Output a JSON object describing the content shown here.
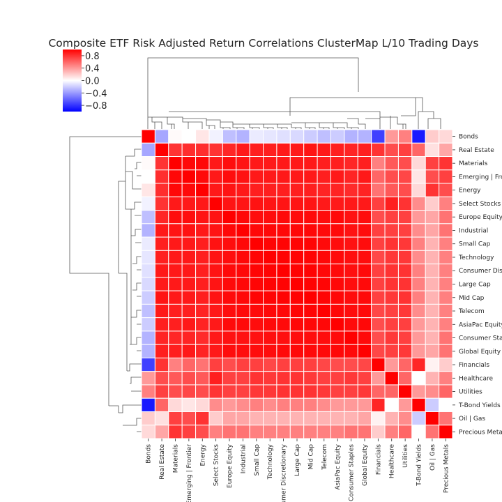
{
  "chart_data": {
    "type": "heatmap",
    "title": "Composite ETF Risk Adjusted Return Correlations ClusterMap L/10 Trading Days",
    "labels": [
      "Bonds",
      "Real Estate",
      "Materials",
      "Emerging | Frontier",
      "Energy",
      "Select Stocks",
      "Europe Equity",
      "Industrial",
      "Small Cap",
      "Technology",
      "Consumer Discretionary",
      "Large Cap",
      "Mid Cap",
      "Telecom",
      "AsiaPac Equity",
      "Consumer Staples",
      "Global Equity",
      "Financials",
      "Healthcare",
      "Utilities",
      "T-Bond Yields",
      "Oil | Gas",
      "Precious Metals"
    ],
    "colorbar": {
      "min": -1.0,
      "max": 1.0,
      "ticks": [
        0.8,
        0.4,
        0.0,
        -0.4,
        -0.8
      ],
      "tick_labels": [
        "0.8",
        "0.4",
        "0.0",
        "−0.4",
        "−0.8"
      ],
      "colormap": "bwr",
      "colors": {
        "negative": "#0000ff",
        "zero": "#ffffff",
        "positive": "#ff0000"
      }
    },
    "values": [
      [
        1.0,
        -0.35,
        0.02,
        0.0,
        0.1,
        -0.05,
        -0.25,
        -0.3,
        -0.08,
        -0.1,
        -0.12,
        -0.15,
        -0.2,
        -0.25,
        -0.2,
        -0.3,
        -0.3,
        -0.75,
        0.4,
        0.5,
        -0.9,
        0.2,
        0.15
      ],
      [
        -0.35,
        1.0,
        0.8,
        0.82,
        0.82,
        0.8,
        0.85,
        0.9,
        0.88,
        0.88,
        0.9,
        0.9,
        0.92,
        0.9,
        0.88,
        0.86,
        0.88,
        0.8,
        0.7,
        0.75,
        0.6,
        0.12,
        0.35
      ],
      [
        0.02,
        0.8,
        1.0,
        0.97,
        0.97,
        0.9,
        0.95,
        0.92,
        0.9,
        0.9,
        0.9,
        0.9,
        0.9,
        0.88,
        0.88,
        0.85,
        0.88,
        0.5,
        0.65,
        0.7,
        0.15,
        0.75,
        0.8
      ],
      [
        0.0,
        0.82,
        0.97,
        1.0,
        0.96,
        0.9,
        0.95,
        0.93,
        0.9,
        0.9,
        0.9,
        0.9,
        0.9,
        0.88,
        0.9,
        0.86,
        0.9,
        0.6,
        0.7,
        0.72,
        0.1,
        0.7,
        0.75
      ],
      [
        0.1,
        0.82,
        0.97,
        0.96,
        1.0,
        0.9,
        0.92,
        0.9,
        0.88,
        0.88,
        0.88,
        0.88,
        0.88,
        0.86,
        0.86,
        0.83,
        0.86,
        0.55,
        0.65,
        0.7,
        0.15,
        0.8,
        0.7
      ],
      [
        -0.05,
        0.8,
        0.9,
        0.9,
        0.9,
        1.0,
        0.92,
        0.92,
        0.93,
        0.92,
        0.92,
        0.92,
        0.92,
        0.9,
        0.9,
        0.9,
        0.9,
        0.75,
        0.88,
        0.8,
        0.45,
        0.2,
        0.5
      ],
      [
        -0.25,
        0.85,
        0.95,
        0.95,
        0.92,
        0.92,
        1.0,
        0.97,
        0.95,
        0.95,
        0.96,
        0.96,
        0.96,
        0.95,
        0.96,
        0.93,
        0.95,
        0.7,
        0.75,
        0.75,
        0.4,
        0.35,
        0.55
      ],
      [
        -0.3,
        0.9,
        0.92,
        0.93,
        0.9,
        0.92,
        0.97,
        1.0,
        0.97,
        0.97,
        0.97,
        0.97,
        0.97,
        0.96,
        0.96,
        0.93,
        0.95,
        0.75,
        0.75,
        0.75,
        0.45,
        0.35,
        0.55
      ],
      [
        -0.08,
        0.88,
        0.9,
        0.9,
        0.88,
        0.93,
        0.95,
        0.97,
        1.0,
        0.98,
        0.98,
        0.98,
        0.98,
        0.96,
        0.95,
        0.93,
        0.95,
        0.75,
        0.8,
        0.78,
        0.5,
        0.3,
        0.5
      ],
      [
        -0.1,
        0.88,
        0.9,
        0.9,
        0.88,
        0.92,
        0.95,
        0.97,
        0.98,
        1.0,
        0.99,
        0.99,
        0.98,
        0.97,
        0.96,
        0.94,
        0.95,
        0.72,
        0.78,
        0.78,
        0.45,
        0.3,
        0.5
      ],
      [
        -0.12,
        0.9,
        0.9,
        0.9,
        0.88,
        0.92,
        0.96,
        0.97,
        0.98,
        0.99,
        1.0,
        0.99,
        0.99,
        0.97,
        0.96,
        0.94,
        0.96,
        0.75,
        0.8,
        0.8,
        0.5,
        0.3,
        0.5
      ],
      [
        -0.15,
        0.9,
        0.9,
        0.9,
        0.88,
        0.92,
        0.96,
        0.97,
        0.98,
        0.99,
        0.99,
        1.0,
        0.99,
        0.98,
        0.97,
        0.95,
        0.96,
        0.75,
        0.8,
        0.8,
        0.5,
        0.3,
        0.5
      ],
      [
        -0.2,
        0.92,
        0.9,
        0.9,
        0.88,
        0.92,
        0.96,
        0.97,
        0.98,
        0.98,
        0.99,
        0.99,
        1.0,
        0.98,
        0.97,
        0.95,
        0.96,
        0.75,
        0.78,
        0.8,
        0.5,
        0.3,
        0.5
      ],
      [
        -0.25,
        0.9,
        0.88,
        0.88,
        0.86,
        0.9,
        0.95,
        0.96,
        0.96,
        0.97,
        0.97,
        0.98,
        0.98,
        1.0,
        0.97,
        0.95,
        0.96,
        0.72,
        0.75,
        0.78,
        0.45,
        0.3,
        0.5
      ],
      [
        -0.2,
        0.88,
        0.88,
        0.9,
        0.86,
        0.9,
        0.96,
        0.96,
        0.95,
        0.96,
        0.96,
        0.97,
        0.97,
        0.97,
        1.0,
        0.96,
        0.97,
        0.7,
        0.75,
        0.75,
        0.4,
        0.3,
        0.5
      ],
      [
        -0.3,
        0.86,
        0.85,
        0.86,
        0.83,
        0.9,
        0.93,
        0.93,
        0.93,
        0.94,
        0.94,
        0.95,
        0.95,
        0.95,
        0.96,
        1.0,
        0.96,
        0.7,
        0.78,
        0.75,
        0.4,
        0.3,
        0.55
      ],
      [
        -0.3,
        0.88,
        0.88,
        0.9,
        0.86,
        0.9,
        0.95,
        0.95,
        0.95,
        0.95,
        0.96,
        0.96,
        0.96,
        0.96,
        0.97,
        0.96,
        1.0,
        0.72,
        0.75,
        0.78,
        0.4,
        0.35,
        0.55
      ],
      [
        -0.75,
        0.8,
        0.5,
        0.6,
        0.55,
        0.75,
        0.7,
        0.75,
        0.75,
        0.72,
        0.75,
        0.75,
        0.75,
        0.72,
        0.7,
        0.7,
        0.72,
        1.0,
        0.4,
        0.6,
        0.85,
        0.05,
        0.2
      ],
      [
        0.4,
        0.7,
        0.65,
        0.7,
        0.65,
        0.88,
        0.75,
        0.75,
        0.8,
        0.78,
        0.8,
        0.8,
        0.78,
        0.75,
        0.75,
        0.78,
        0.75,
        0.4,
        1.0,
        0.6,
        0.0,
        0.3,
        0.5
      ],
      [
        0.5,
        0.75,
        0.7,
        0.72,
        0.7,
        0.8,
        0.75,
        0.75,
        0.78,
        0.78,
        0.8,
        0.8,
        0.8,
        0.78,
        0.75,
        0.75,
        0.78,
        0.6,
        0.6,
        1.0,
        0.4,
        0.45,
        0.6
      ],
      [
        -0.9,
        0.6,
        0.15,
        0.1,
        0.15,
        0.45,
        0.4,
        0.45,
        0.5,
        0.45,
        0.5,
        0.5,
        0.5,
        0.45,
        0.4,
        0.4,
        0.4,
        0.85,
        0.0,
        0.4,
        1.0,
        -0.2,
        0.0
      ],
      [
        0.2,
        0.12,
        0.75,
        0.7,
        0.8,
        0.2,
        0.35,
        0.35,
        0.3,
        0.3,
        0.3,
        0.3,
        0.3,
        0.3,
        0.3,
        0.3,
        0.35,
        0.05,
        0.3,
        0.45,
        -0.2,
        1.0,
        0.55
      ],
      [
        0.15,
        0.35,
        0.8,
        0.75,
        0.7,
        0.5,
        0.55,
        0.55,
        0.5,
        0.5,
        0.5,
        0.5,
        0.5,
        0.5,
        0.5,
        0.55,
        0.55,
        0.2,
        0.5,
        0.6,
        0.0,
        0.55,
        1.0
      ]
    ]
  }
}
